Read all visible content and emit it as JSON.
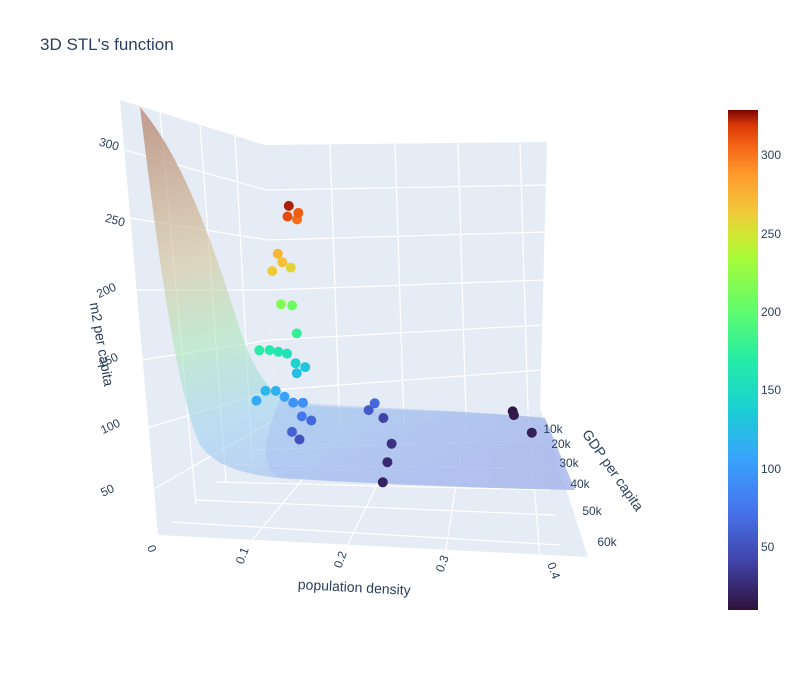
{
  "title": "3D STL's function",
  "chart_data": {
    "type": "scatter3d+surface",
    "title": "3D STL's function",
    "axes": {
      "x": {
        "label": "population density",
        "ticks": [
          "0",
          "0.1",
          "0.2",
          "0.3",
          "0.4"
        ]
      },
      "y": {
        "label": "GDP per capita",
        "ticks": [
          "10k",
          "20k",
          "30k",
          "40k",
          "50k",
          "60k"
        ]
      },
      "z": {
        "label": "m2 per capita",
        "ticks": [
          "50",
          "100",
          "150",
          "200",
          "250",
          "300"
        ]
      }
    },
    "colorbar": {
      "colorscale": "turbo",
      "range": [
        10,
        325
      ],
      "ticks": [
        "50",
        "100",
        "150",
        "200",
        "250",
        "300"
      ]
    },
    "surface": {
      "description": "fitted STL function, high at low density, flattening toward higher density",
      "opacity": 0.5
    },
    "points": [
      {
        "x": 0.07,
        "y": 21000,
        "z": 320
      },
      {
        "x": 0.07,
        "y": 22000,
        "z": 310
      },
      {
        "x": 0.08,
        "y": 20000,
        "z": 300
      },
      {
        "x": 0.08,
        "y": 19000,
        "z": 305
      },
      {
        "x": 0.06,
        "y": 24000,
        "z": 270
      },
      {
        "x": 0.07,
        "y": 26000,
        "z": 265
      },
      {
        "x": 0.06,
        "y": 28000,
        "z": 260
      },
      {
        "x": 0.08,
        "y": 25000,
        "z": 255
      },
      {
        "x": 0.07,
        "y": 27000,
        "z": 215
      },
      {
        "x": 0.08,
        "y": 24000,
        "z": 205
      },
      {
        "x": 0.09,
        "y": 26000,
        "z": 175
      },
      {
        "x": 0.05,
        "y": 32000,
        "z": 170
      },
      {
        "x": 0.06,
        "y": 30000,
        "z": 165
      },
      {
        "x": 0.07,
        "y": 29000,
        "z": 160
      },
      {
        "x": 0.08,
        "y": 28000,
        "z": 155
      },
      {
        "x": 0.09,
        "y": 27000,
        "z": 140
      },
      {
        "x": 0.1,
        "y": 25000,
        "z": 130
      },
      {
        "x": 0.09,
        "y": 26000,
        "z": 125
      },
      {
        "x": 0.06,
        "y": 33000,
        "z": 120
      },
      {
        "x": 0.07,
        "y": 31000,
        "z": 115
      },
      {
        "x": 0.05,
        "y": 34000,
        "z": 110
      },
      {
        "x": 0.08,
        "y": 30000,
        "z": 105
      },
      {
        "x": 0.09,
        "y": 29000,
        "z": 95
      },
      {
        "x": 0.1,
        "y": 27000,
        "z": 90
      },
      {
        "x": 0.1,
        "y": 28000,
        "z": 75
      },
      {
        "x": 0.11,
        "y": 26000,
        "z": 65
      },
      {
        "x": 0.09,
        "y": 30000,
        "z": 60
      },
      {
        "x": 0.1,
        "y": 30000,
        "z": 50
      },
      {
        "x": 0.2,
        "y": 15000,
        "z": 40
      },
      {
        "x": 0.18,
        "y": 17000,
        "z": 55
      },
      {
        "x": 0.19,
        "y": 18000,
        "z": 65
      },
      {
        "x": 0.22,
        "y": 25000,
        "z": 30
      },
      {
        "x": 0.22,
        "y": 33000,
        "z": 25
      },
      {
        "x": 0.22,
        "y": 42000,
        "z": 20
      },
      {
        "x": 0.4,
        "y": 5000,
        "z": 12
      },
      {
        "x": 0.4,
        "y": 8000,
        "z": 15
      },
      {
        "x": 0.42,
        "y": 18000,
        "z": 18
      }
    ]
  }
}
